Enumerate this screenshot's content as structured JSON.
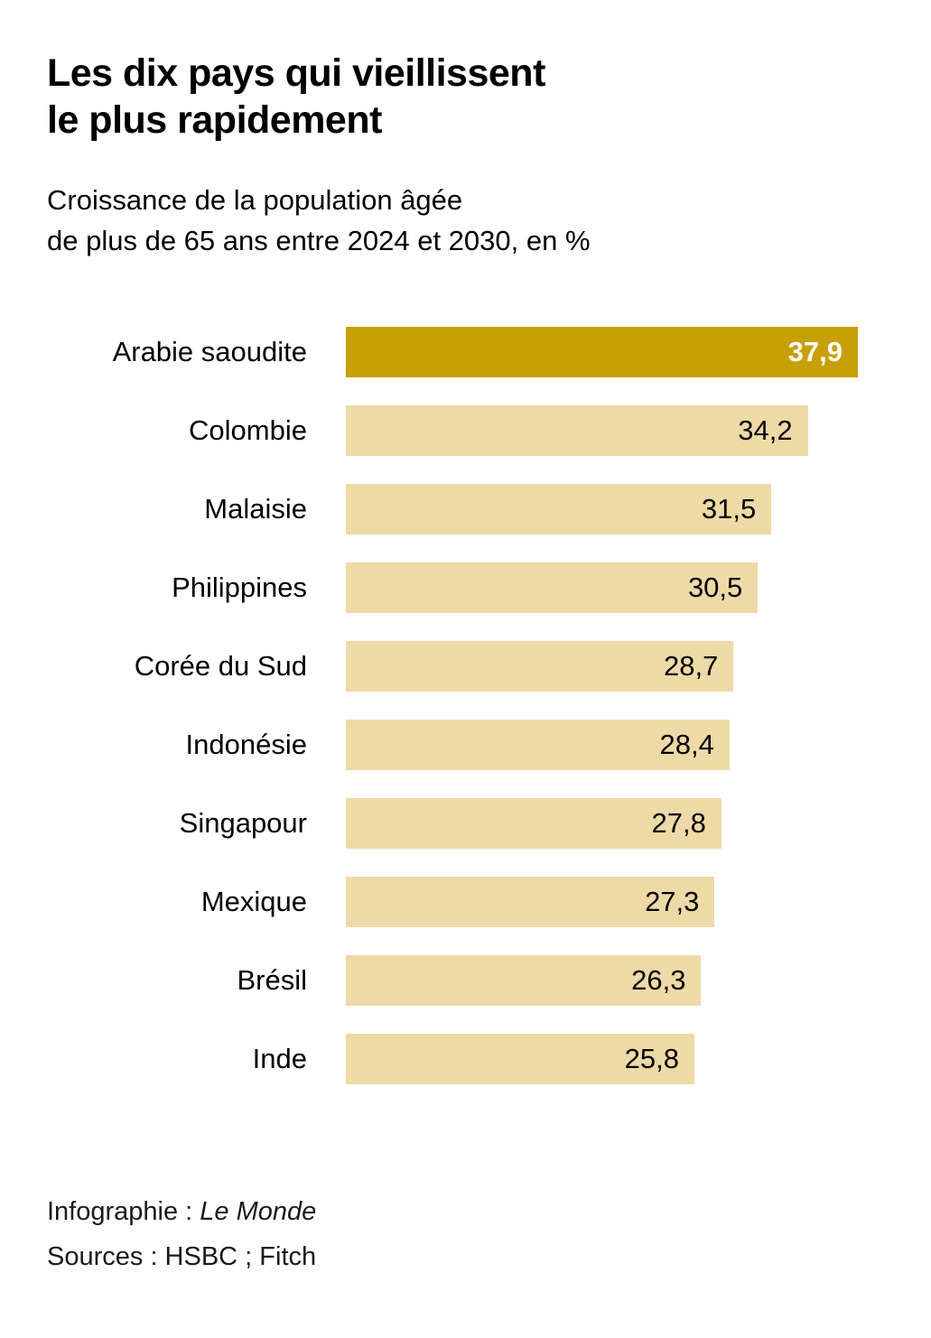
{
  "title": "Les dix pays qui vieillissent\nle plus rapidement",
  "subtitle": "Croissance de la population âgée\nde plus de 65 ans entre 2024 et 2030, en %",
  "chart_data": {
    "type": "bar",
    "orientation": "horizontal",
    "title": "Les dix pays qui vieillissent le plus rapidement",
    "subtitle": "Croissance de la population âgée de plus de 65 ans entre 2024 et 2030, en %",
    "categories": [
      "Arabie saoudite",
      "Colombie",
      "Malaisie",
      "Philippines",
      "Corée du Sud",
      "Indonésie",
      "Singapour",
      "Mexique",
      "Brésil",
      "Inde"
    ],
    "values": [
      37.9,
      34.2,
      31.5,
      30.5,
      28.7,
      28.4,
      27.8,
      27.3,
      26.3,
      25.8
    ],
    "value_labels": [
      "37,9",
      "34,2",
      "31,5",
      "30,5",
      "28,7",
      "28,4",
      "27,8",
      "27,3",
      "26,3",
      "25,8"
    ],
    "highlight_index": 0,
    "xlim": [
      0,
      37.9
    ],
    "grid": false,
    "legend": "none",
    "colors": {
      "highlight_bar": "#c6a004",
      "bar": "#eedaa7",
      "highlight_value_text": "#ffffff",
      "value_text": "#000000"
    }
  },
  "footer": {
    "credit_label": "Infographie : ",
    "credit_value": "Le Monde",
    "sources": "Sources : HSBC ; Fitch"
  }
}
